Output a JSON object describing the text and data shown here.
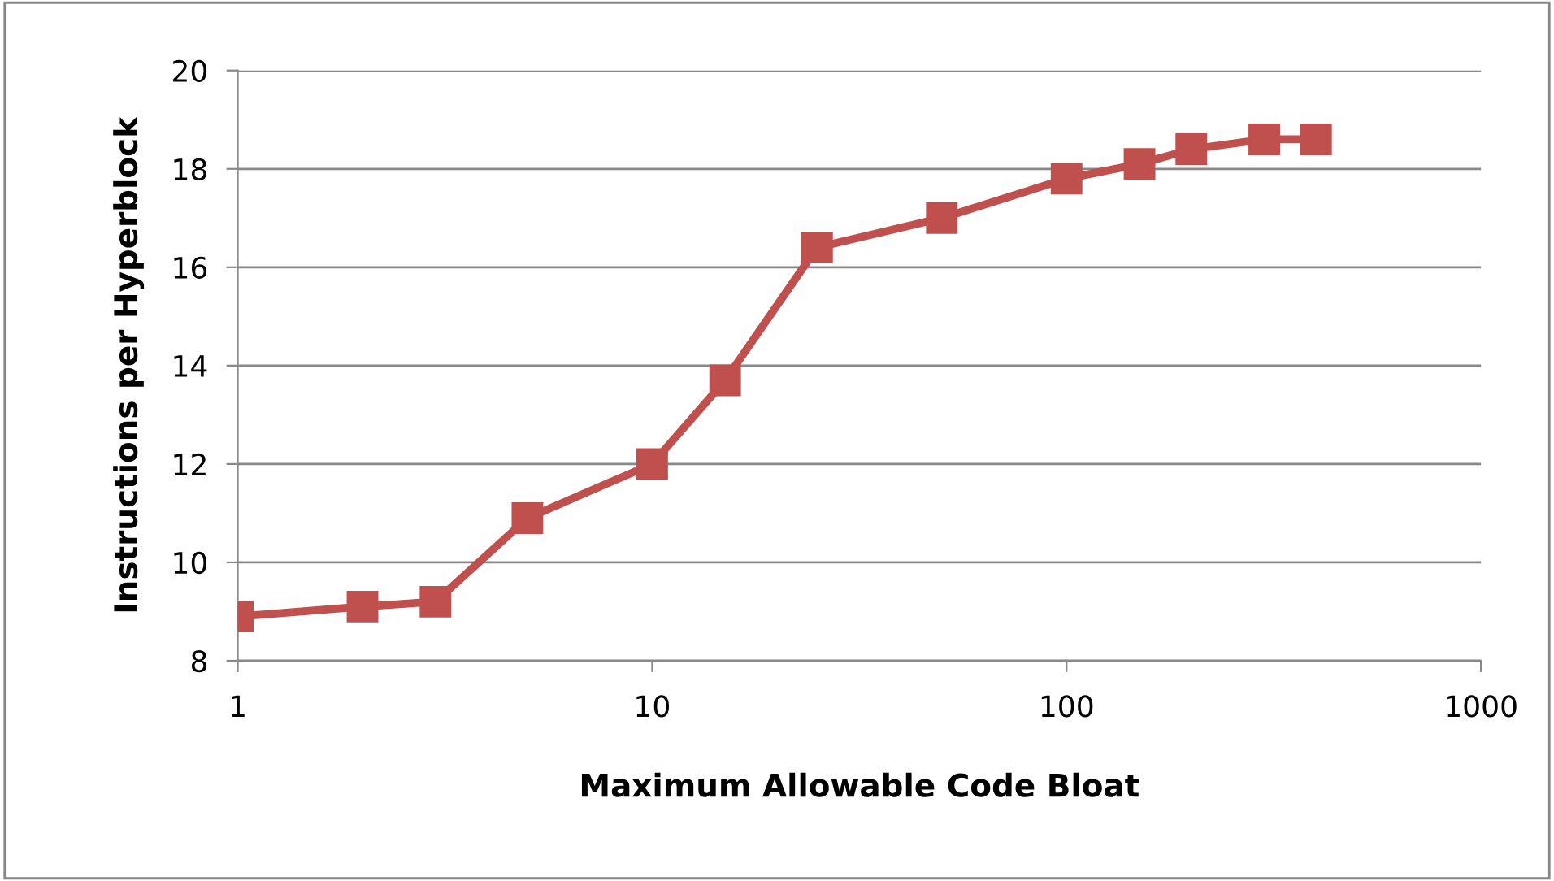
{
  "chart_data": {
    "type": "line",
    "xlabel": "Maximum Allowable Code Bloat",
    "ylabel": "Instructions per Hyperblock",
    "x": [
      1,
      2,
      3,
      5,
      10,
      15,
      25,
      50,
      100,
      150,
      200,
      300,
      400
    ],
    "series": [
      {
        "color": "#c0504d",
        "values": [
          8.9,
          9.1,
          9.2,
          10.9,
          12.0,
          13.7,
          16.4,
          17.0,
          17.8,
          18.1,
          18.4,
          18.6,
          18.6
        ]
      }
    ],
    "log": "x",
    "xlim": [
      1,
      1000
    ],
    "xticks": [
      1,
      10,
      100,
      1000
    ],
    "ylim": [
      8,
      20
    ],
    "yticks": [
      8,
      10,
      12,
      14,
      16,
      18,
      20
    ],
    "grid": "y",
    "marker": "square",
    "line_style": "solid",
    "legend": false
  }
}
